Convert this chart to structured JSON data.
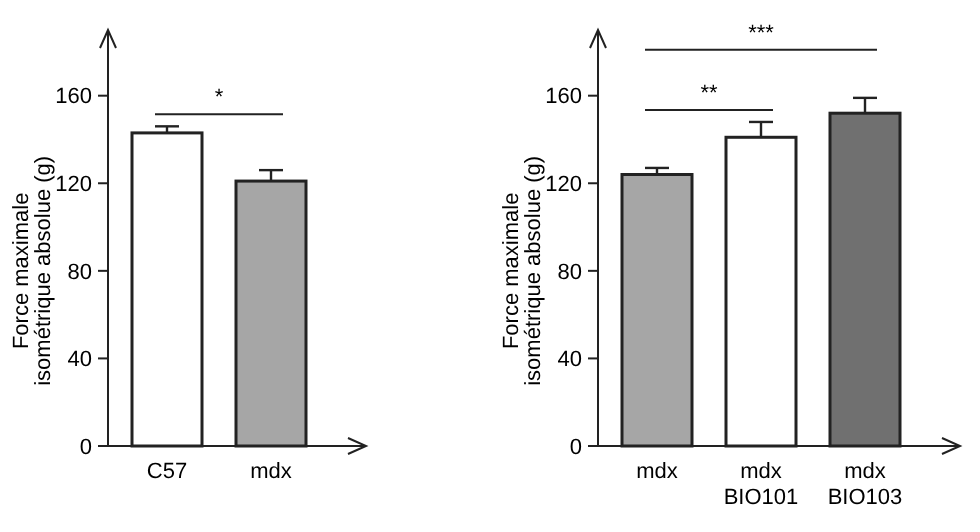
{
  "chart_data": [
    {
      "type": "bar",
      "ylabel": "Force maximale\nisométrique absolue (g)",
      "categories": [
        "C57",
        "mdx"
      ],
      "values": [
        143,
        121
      ],
      "errors": [
        3,
        5
      ],
      "colors": [
        "#ffffff",
        "#a6a6a6"
      ],
      "ylim": [
        0,
        190
      ],
      "yticks": [
        0,
        40,
        80,
        120,
        160
      ],
      "grid": false,
      "annotations": [
        "*"
      ]
    },
    {
      "type": "bar",
      "ylabel": "Force maximale\nisométrique absolue (g)",
      "categories": [
        "mdx",
        "mdx\nBIO101",
        "mdx\nBIO103"
      ],
      "values": [
        124,
        141,
        152
      ],
      "errors": [
        3,
        7,
        7
      ],
      "colors": [
        "#a6a6a6",
        "#ffffff",
        "#707070"
      ],
      "ylim": [
        0,
        190
      ],
      "yticks": [
        0,
        40,
        80,
        120,
        160
      ],
      "grid": false,
      "annotations": [
        "**",
        "***"
      ]
    }
  ]
}
